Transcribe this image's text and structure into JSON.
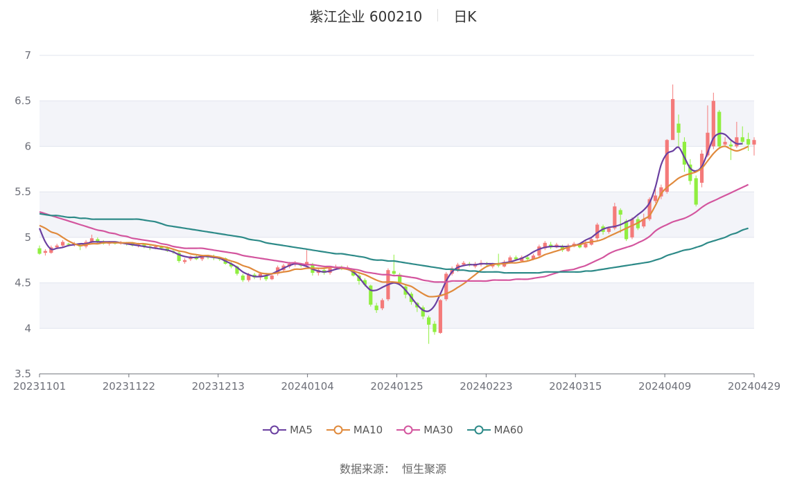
{
  "header": {
    "stock": "紫江企业 600210",
    "period": "日K"
  },
  "footer": {
    "source_label": "数据来源：",
    "source_value": "恒生聚源"
  },
  "chart_data": {
    "type": "candlestick",
    "ylim": [
      3.5,
      7
    ],
    "yticks": [
      "3.5",
      "4",
      "4.5",
      "5",
      "5.5",
      "6",
      "6.5",
      "7"
    ],
    "xticks": [
      "20231101",
      "20231122",
      "20231213",
      "20240104",
      "20240125",
      "20240223",
      "20240315",
      "20240409",
      "20240429"
    ],
    "colors": {
      "up": "#f47a7a",
      "down": "#90ee40",
      "band": "#f3f4f9",
      "grid": "#e1e4ee",
      "axis": "#6e7079"
    },
    "candles": [
      [
        4.88,
        4.82,
        4.91,
        4.81
      ],
      [
        4.83,
        4.85,
        4.87,
        4.8
      ],
      [
        4.83,
        4.89,
        4.91,
        4.82
      ],
      [
        4.89,
        4.91,
        4.93,
        4.87
      ],
      [
        4.91,
        4.95,
        4.97,
        4.89
      ],
      [
        4.93,
        4.92,
        4.94,
        4.9
      ],
      [
        4.92,
        4.93,
        4.95,
        4.9
      ],
      [
        4.91,
        4.9,
        4.93,
        4.86
      ],
      [
        4.9,
        4.95,
        4.97,
        4.88
      ],
      [
        4.95,
        4.99,
        5.03,
        4.93
      ],
      [
        4.98,
        4.95,
        5.0,
        4.93
      ],
      [
        4.95,
        4.93,
        4.97,
        4.92
      ],
      [
        4.93,
        4.95,
        4.96,
        4.91
      ],
      [
        4.94,
        4.93,
        4.95,
        4.92
      ],
      [
        4.93,
        4.94,
        4.96,
        4.92
      ],
      [
        4.94,
        4.93,
        4.95,
        4.91
      ],
      [
        4.94,
        4.91,
        4.95,
        4.9
      ],
      [
        4.91,
        4.92,
        4.94,
        4.89
      ],
      [
        4.92,
        4.9,
        4.93,
        4.88
      ],
      [
        4.9,
        4.89,
        4.91,
        4.86
      ],
      [
        4.89,
        4.9,
        4.92,
        4.87
      ],
      [
        4.9,
        4.88,
        4.91,
        4.86
      ],
      [
        4.88,
        4.85,
        4.9,
        4.84
      ],
      [
        4.85,
        4.84,
        4.86,
        4.82
      ],
      [
        4.83,
        4.74,
        4.85,
        4.72
      ],
      [
        4.73,
        4.75,
        4.77,
        4.71
      ],
      [
        4.76,
        4.79,
        4.8,
        4.74
      ],
      [
        4.79,
        4.76,
        4.81,
        4.75
      ],
      [
        4.76,
        4.79,
        4.8,
        4.74
      ],
      [
        4.8,
        4.78,
        4.81,
        4.76
      ],
      [
        4.79,
        4.78,
        4.81,
        4.75
      ],
      [
        4.78,
        4.76,
        4.79,
        4.74
      ],
      [
        4.77,
        4.71,
        4.78,
        4.7
      ],
      [
        4.71,
        4.68,
        4.73,
        4.66
      ],
      [
        4.68,
        4.6,
        4.69,
        4.58
      ],
      [
        4.58,
        4.53,
        4.6,
        4.51
      ],
      [
        4.53,
        4.59,
        4.61,
        4.51
      ],
      [
        4.59,
        4.56,
        4.61,
        4.54
      ],
      [
        4.56,
        4.6,
        4.62,
        4.53
      ],
      [
        4.58,
        4.54,
        4.61,
        4.52
      ],
      [
        4.54,
        4.58,
        4.6,
        4.53
      ],
      [
        4.6,
        4.67,
        4.69,
        4.58
      ],
      [
        4.64,
        4.69,
        4.71,
        4.62
      ],
      [
        4.68,
        4.71,
        4.73,
        4.66
      ],
      [
        4.7,
        4.72,
        4.74,
        4.68
      ],
      [
        4.7,
        4.69,
        4.72,
        4.67
      ],
      [
        4.7,
        4.73,
        4.86,
        4.68
      ],
      [
        4.7,
        4.61,
        4.72,
        4.58
      ],
      [
        4.61,
        4.64,
        4.66,
        4.58
      ],
      [
        4.64,
        4.61,
        4.67,
        4.59
      ],
      [
        4.61,
        4.66,
        4.68,
        4.59
      ],
      [
        4.66,
        4.68,
        4.7,
        4.64
      ],
      [
        4.67,
        4.66,
        4.69,
        4.64
      ],
      [
        4.66,
        4.67,
        4.69,
        4.64
      ],
      [
        4.64,
        4.58,
        4.65,
        4.57
      ],
      [
        4.58,
        4.52,
        4.6,
        4.48
      ],
      [
        4.53,
        4.48,
        4.55,
        4.46
      ],
      [
        4.47,
        4.26,
        4.48,
        4.24
      ],
      [
        4.25,
        4.2,
        4.28,
        4.17
      ],
      [
        4.22,
        4.31,
        4.33,
        4.2
      ],
      [
        4.32,
        4.64,
        4.66,
        4.3
      ],
      [
        4.63,
        4.6,
        4.81,
        4.58
      ],
      [
        4.59,
        4.5,
        4.61,
        4.47
      ],
      [
        4.46,
        4.37,
        4.47,
        4.33
      ],
      [
        4.38,
        4.29,
        4.4,
        4.26
      ],
      [
        4.28,
        4.23,
        4.29,
        4.18
      ],
      [
        4.23,
        4.13,
        4.25,
        4.1
      ],
      [
        4.12,
        4.04,
        4.14,
        3.83
      ],
      [
        4.05,
        3.96,
        4.08,
        3.93
      ],
      [
        3.95,
        4.31,
        4.32,
        3.94
      ],
      [
        4.32,
        4.6,
        4.62,
        4.3
      ],
      [
        4.6,
        4.66,
        4.68,
        4.58
      ],
      [
        4.64,
        4.7,
        4.72,
        4.62
      ],
      [
        4.7,
        4.72,
        4.74,
        4.68
      ],
      [
        4.71,
        4.7,
        4.73,
        4.68
      ],
      [
        4.68,
        4.71,
        4.73,
        4.66
      ],
      [
        4.7,
        4.72,
        4.75,
        4.68
      ],
      [
        4.71,
        4.7,
        4.73,
        4.68
      ],
      [
        4.68,
        4.71,
        4.72,
        4.66
      ],
      [
        4.7,
        4.69,
        4.82,
        4.67
      ],
      [
        4.68,
        4.73,
        4.75,
        4.67
      ],
      [
        4.73,
        4.78,
        4.8,
        4.71
      ],
      [
        4.78,
        4.76,
        4.8,
        4.74
      ],
      [
        4.74,
        4.78,
        4.8,
        4.73
      ],
      [
        4.78,
        4.76,
        4.8,
        4.74
      ],
      [
        4.76,
        4.8,
        4.82,
        4.75
      ],
      [
        4.8,
        4.9,
        4.92,
        4.78
      ],
      [
        4.88,
        4.94,
        4.96,
        4.86
      ],
      [
        4.92,
        4.89,
        4.95,
        4.87
      ],
      [
        4.89,
        4.92,
        4.94,
        4.88
      ],
      [
        4.9,
        4.86,
        4.92,
        4.84
      ],
      [
        4.85,
        4.91,
        4.93,
        4.84
      ],
      [
        4.9,
        4.93,
        4.95,
        4.89
      ],
      [
        4.92,
        4.89,
        4.94,
        4.88
      ],
      [
        4.89,
        4.93,
        4.96,
        4.88
      ],
      [
        4.92,
        4.98,
        5.0,
        4.91
      ],
      [
        4.99,
        5.14,
        5.16,
        4.97
      ],
      [
        5.12,
        5.06,
        5.14,
        5.03
      ],
      [
        5.06,
        5.1,
        5.12,
        5.04
      ],
      [
        5.1,
        5.34,
        5.38,
        5.08
      ],
      [
        5.3,
        5.25,
        5.32,
        5.05
      ],
      [
        5.18,
        4.98,
        5.2,
        4.96
      ],
      [
        5.0,
        5.2,
        5.22,
        4.98
      ],
      [
        5.2,
        5.1,
        5.23,
        5.08
      ],
      [
        5.12,
        5.2,
        5.26,
        5.1
      ],
      [
        5.2,
        5.42,
        5.44,
        5.18
      ],
      [
        5.4,
        5.46,
        5.55,
        5.38
      ],
      [
        5.45,
        5.55,
        5.58,
        5.42
      ],
      [
        5.5,
        6.07,
        6.08,
        5.48
      ],
      [
        6.07,
        6.52,
        6.68,
        6.22
      ],
      [
        6.25,
        6.15,
        6.35,
        6.0
      ],
      [
        6.05,
        5.8,
        6.1,
        5.72
      ],
      [
        5.8,
        5.62,
        5.86,
        5.58
      ],
      [
        5.65,
        5.36,
        5.68,
        5.34
      ],
      [
        5.6,
        5.92,
        5.96,
        5.55
      ],
      [
        5.9,
        6.15,
        6.45,
        5.88
      ],
      [
        6.0,
        6.5,
        6.59,
        5.97
      ],
      [
        6.38,
        6.0,
        6.4,
        5.98
      ],
      [
        6.02,
        6.05,
        6.1,
        6.0
      ],
      [
        6.02,
        6.0,
        6.08,
        5.85
      ],
      [
        6.0,
        6.1,
        6.27,
        5.98
      ],
      [
        6.1,
        6.05,
        6.22,
        6.02
      ],
      [
        6.08,
        6.02,
        6.15,
        5.95
      ],
      [
        6.02,
        6.07,
        6.1,
        5.9
      ]
    ],
    "series": [
      {
        "name": "MA5",
        "color": "#6a3fa0",
        "values": [
          5.1,
          4.95,
          4.87,
          4.88,
          4.89,
          4.91,
          4.92,
          4.93,
          4.93,
          4.95,
          4.95,
          4.95,
          4.95,
          4.95,
          4.94,
          4.93,
          4.92,
          4.91,
          4.9,
          4.89,
          4.88,
          4.87,
          4.86,
          4.84,
          4.81,
          4.79,
          4.78,
          4.78,
          4.79,
          4.79,
          4.78,
          4.77,
          4.74,
          4.71,
          4.67,
          4.62,
          4.59,
          4.57,
          4.57,
          4.58,
          4.6,
          4.63,
          4.66,
          4.69,
          4.71,
          4.7,
          4.68,
          4.65,
          4.63,
          4.62,
          4.63,
          4.65,
          4.66,
          4.65,
          4.62,
          4.56,
          4.48,
          4.42,
          4.42,
          4.45,
          4.48,
          4.5,
          4.48,
          4.42,
          4.34,
          4.26,
          4.2,
          4.19,
          4.25,
          4.38,
          4.52,
          4.62,
          4.67,
          4.69,
          4.7,
          4.7,
          4.71,
          4.71,
          4.71,
          4.71,
          4.72,
          4.73,
          4.75,
          4.77,
          4.8,
          4.84,
          4.87,
          4.89,
          4.9,
          4.9,
          4.9,
          4.9,
          4.91,
          4.93,
          4.97,
          5.0,
          5.05,
          5.09,
          5.11,
          5.12,
          5.14,
          5.17,
          5.2,
          5.25,
          5.3,
          5.38,
          5.55,
          5.8,
          5.92,
          5.95,
          5.99,
          5.88,
          5.76,
          5.73,
          5.78,
          5.93,
          6.09,
          6.14,
          6.13,
          6.07,
          6.03,
          6.03
        ]
      },
      {
        "name": "MA10",
        "color": "#e08a3c",
        "values": [
          5.13,
          5.1,
          5.06,
          5.04,
          5.0,
          4.96,
          4.93,
          4.91,
          4.92,
          4.93,
          4.93,
          4.94,
          4.94,
          4.94,
          4.94,
          4.94,
          4.94,
          4.93,
          4.93,
          4.92,
          4.91,
          4.9,
          4.89,
          4.87,
          4.85,
          4.84,
          4.82,
          4.81,
          4.8,
          4.8,
          4.79,
          4.78,
          4.76,
          4.74,
          4.72,
          4.69,
          4.67,
          4.64,
          4.61,
          4.6,
          4.6,
          4.61,
          4.62,
          4.63,
          4.65,
          4.65,
          4.66,
          4.66,
          4.66,
          4.66,
          4.67,
          4.67,
          4.66,
          4.65,
          4.63,
          4.61,
          4.59,
          4.56,
          4.53,
          4.51,
          4.51,
          4.51,
          4.5,
          4.48,
          4.46,
          4.42,
          4.38,
          4.35,
          4.35,
          4.36,
          4.38,
          4.41,
          4.45,
          4.49,
          4.54,
          4.59,
          4.64,
          4.68,
          4.7,
          4.71,
          4.71,
          4.72,
          4.72,
          4.73,
          4.74,
          4.76,
          4.78,
          4.81,
          4.83,
          4.85,
          4.87,
          4.89,
          4.91,
          4.92,
          4.94,
          4.95,
          4.96,
          4.98,
          5.01,
          5.04,
          5.07,
          5.1,
          5.13,
          5.16,
          5.2,
          5.24,
          5.35,
          5.48,
          5.55,
          5.6,
          5.65,
          5.68,
          5.7,
          5.72,
          5.76,
          5.84,
          5.92,
          5.98,
          6.0,
          5.97,
          5.95,
          5.97,
          6.0
        ]
      },
      {
        "name": "MA30",
        "color": "#d3559e",
        "values": [
          5.28,
          5.26,
          5.24,
          5.22,
          5.2,
          5.18,
          5.16,
          5.14,
          5.12,
          5.1,
          5.08,
          5.07,
          5.05,
          5.04,
          5.02,
          5.01,
          4.99,
          4.98,
          4.97,
          4.96,
          4.95,
          4.93,
          4.92,
          4.9,
          4.89,
          4.88,
          4.88,
          4.88,
          4.88,
          4.87,
          4.86,
          4.85,
          4.84,
          4.83,
          4.82,
          4.8,
          4.79,
          4.78,
          4.77,
          4.76,
          4.75,
          4.74,
          4.73,
          4.72,
          4.72,
          4.71,
          4.7,
          4.7,
          4.69,
          4.68,
          4.68,
          4.67,
          4.67,
          4.66,
          4.65,
          4.64,
          4.62,
          4.61,
          4.6,
          4.59,
          4.59,
          4.58,
          4.58,
          4.57,
          4.56,
          4.55,
          4.53,
          4.52,
          4.51,
          4.51,
          4.51,
          4.52,
          4.52,
          4.52,
          4.52,
          4.52,
          4.52,
          4.52,
          4.53,
          4.53,
          4.53,
          4.53,
          4.54,
          4.54,
          4.54,
          4.55,
          4.56,
          4.57,
          4.59,
          4.61,
          4.63,
          4.64,
          4.65,
          4.67,
          4.69,
          4.72,
          4.75,
          4.78,
          4.82,
          4.85,
          4.87,
          4.89,
          4.91,
          4.94,
          4.97,
          5.01,
          5.07,
          5.11,
          5.14,
          5.17,
          5.19,
          5.21,
          5.24,
          5.28,
          5.33,
          5.37,
          5.4,
          5.43,
          5.46,
          5.49,
          5.52,
          5.55,
          5.58
        ]
      },
      {
        "name": "MA60",
        "color": "#2d8a88",
        "values": [
          5.26,
          5.25,
          5.24,
          5.24,
          5.23,
          5.22,
          5.22,
          5.21,
          5.21,
          5.2,
          5.2,
          5.2,
          5.2,
          5.2,
          5.2,
          5.2,
          5.2,
          5.2,
          5.19,
          5.18,
          5.17,
          5.15,
          5.13,
          5.12,
          5.11,
          5.1,
          5.09,
          5.08,
          5.07,
          5.06,
          5.05,
          5.04,
          5.03,
          5.02,
          5.01,
          5.0,
          4.98,
          4.97,
          4.96,
          4.94,
          4.93,
          4.92,
          4.91,
          4.9,
          4.89,
          4.88,
          4.87,
          4.86,
          4.85,
          4.84,
          4.83,
          4.82,
          4.82,
          4.81,
          4.8,
          4.79,
          4.78,
          4.76,
          4.75,
          4.75,
          4.74,
          4.74,
          4.73,
          4.72,
          4.71,
          4.7,
          4.69,
          4.68,
          4.67,
          4.66,
          4.65,
          4.65,
          4.64,
          4.64,
          4.63,
          4.63,
          4.62,
          4.62,
          4.62,
          4.62,
          4.61,
          4.61,
          4.61,
          4.61,
          4.61,
          4.61,
          4.61,
          4.62,
          4.62,
          4.62,
          4.62,
          4.62,
          4.62,
          4.62,
          4.63,
          4.63,
          4.64,
          4.65,
          4.66,
          4.67,
          4.68,
          4.69,
          4.7,
          4.71,
          4.72,
          4.73,
          4.75,
          4.77,
          4.8,
          4.82,
          4.84,
          4.86,
          4.87,
          4.89,
          4.91,
          4.94,
          4.96,
          4.98,
          5.0,
          5.03,
          5.05,
          5.08,
          5.1
        ]
      }
    ]
  }
}
